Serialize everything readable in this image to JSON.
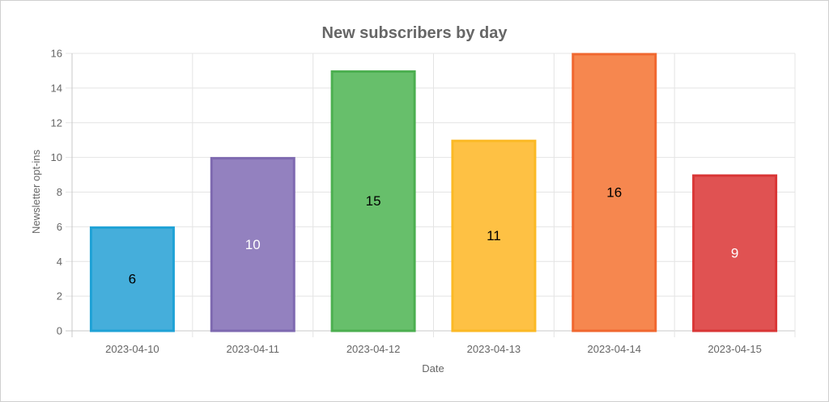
{
  "chart_data": {
    "type": "bar",
    "title": "New subscribers by day",
    "xlabel": "Date",
    "ylabel": "Newsletter opt-ins",
    "categories": [
      "2023-04-10",
      "2023-04-11",
      "2023-04-12",
      "2023-04-13",
      "2023-04-14",
      "2023-04-15"
    ],
    "values": [
      6,
      10,
      15,
      11,
      16,
      9
    ],
    "ylim": [
      0,
      16
    ],
    "yticks": [
      0,
      2,
      4,
      6,
      8,
      10,
      12,
      14,
      16
    ],
    "grid": true,
    "legend": "none",
    "bar_colors": [
      "#45aedb",
      "#9381bf",
      "#67bf6b",
      "#fec144",
      "#f6874f",
      "#e05252"
    ],
    "bar_border_colors": [
      "#1fa2d6",
      "#7e69b0",
      "#4caf50",
      "#fbb925",
      "#f0672f",
      "#d93636"
    ],
    "label_colors": [
      "#000000",
      "#ffffff",
      "#000000",
      "#000000",
      "#000000",
      "#ffffff"
    ]
  }
}
